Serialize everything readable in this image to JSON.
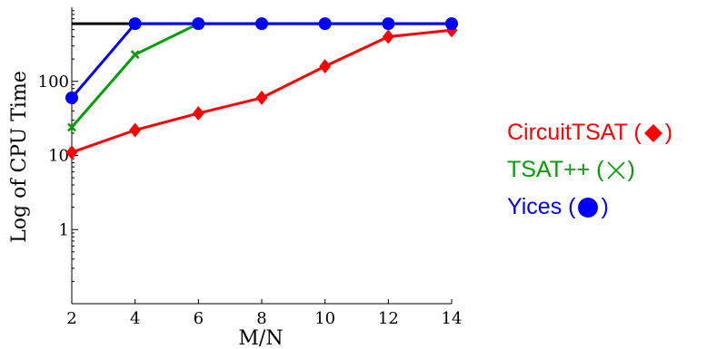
{
  "chart_data": {
    "type": "line",
    "title": "",
    "xlabel": "M/N",
    "ylabel": "Log of CPU Time",
    "yscale": "log",
    "x": [
      2,
      4,
      6,
      8,
      10,
      12,
      14
    ],
    "xlim": [
      2,
      14
    ],
    "ylim": [
      0.1,
      1000
    ],
    "xticks": [
      "2",
      "4",
      "6",
      "8",
      "10",
      "12",
      "14"
    ],
    "yticks": [
      {
        "value": 1,
        "label": "1"
      },
      {
        "value": 10,
        "label": "10"
      },
      {
        "value": 100,
        "label": "100"
      }
    ],
    "timeout": 600,
    "timeout_color": "#000000",
    "grid": false,
    "legend_position": "right",
    "series": [
      {
        "name": "CircuitTSAT",
        "marker": "diamond",
        "color": "#ff0000",
        "x": [
          2,
          4,
          6,
          8,
          10,
          12,
          14
        ],
        "values": [
          11,
          22,
          37,
          60,
          160,
          400,
          490
        ]
      },
      {
        "name": "TSAT++",
        "marker": "x",
        "color": "#00a000",
        "x": [
          2,
          4,
          6
        ],
        "values": [
          24,
          230,
          600
        ]
      },
      {
        "name": "Yices",
        "marker": "circle",
        "color": "#0000ff",
        "x": [
          2,
          4,
          6,
          8,
          10,
          12,
          14
        ],
        "values": [
          60,
          600,
          600,
          600,
          600,
          600,
          600
        ]
      }
    ]
  },
  "legend": {
    "items": [
      {
        "prefix": "CircuitTSAT (",
        "suffix": ")",
        "color": "#ff0000",
        "marker": "diamond-icon"
      },
      {
        "prefix": "TSAT++ (",
        "suffix": ")",
        "color": "#00a000",
        "marker": "x-icon"
      },
      {
        "prefix": "Yices (",
        "suffix": ")",
        "color": "#0000ff",
        "marker": "circle-icon"
      }
    ]
  }
}
